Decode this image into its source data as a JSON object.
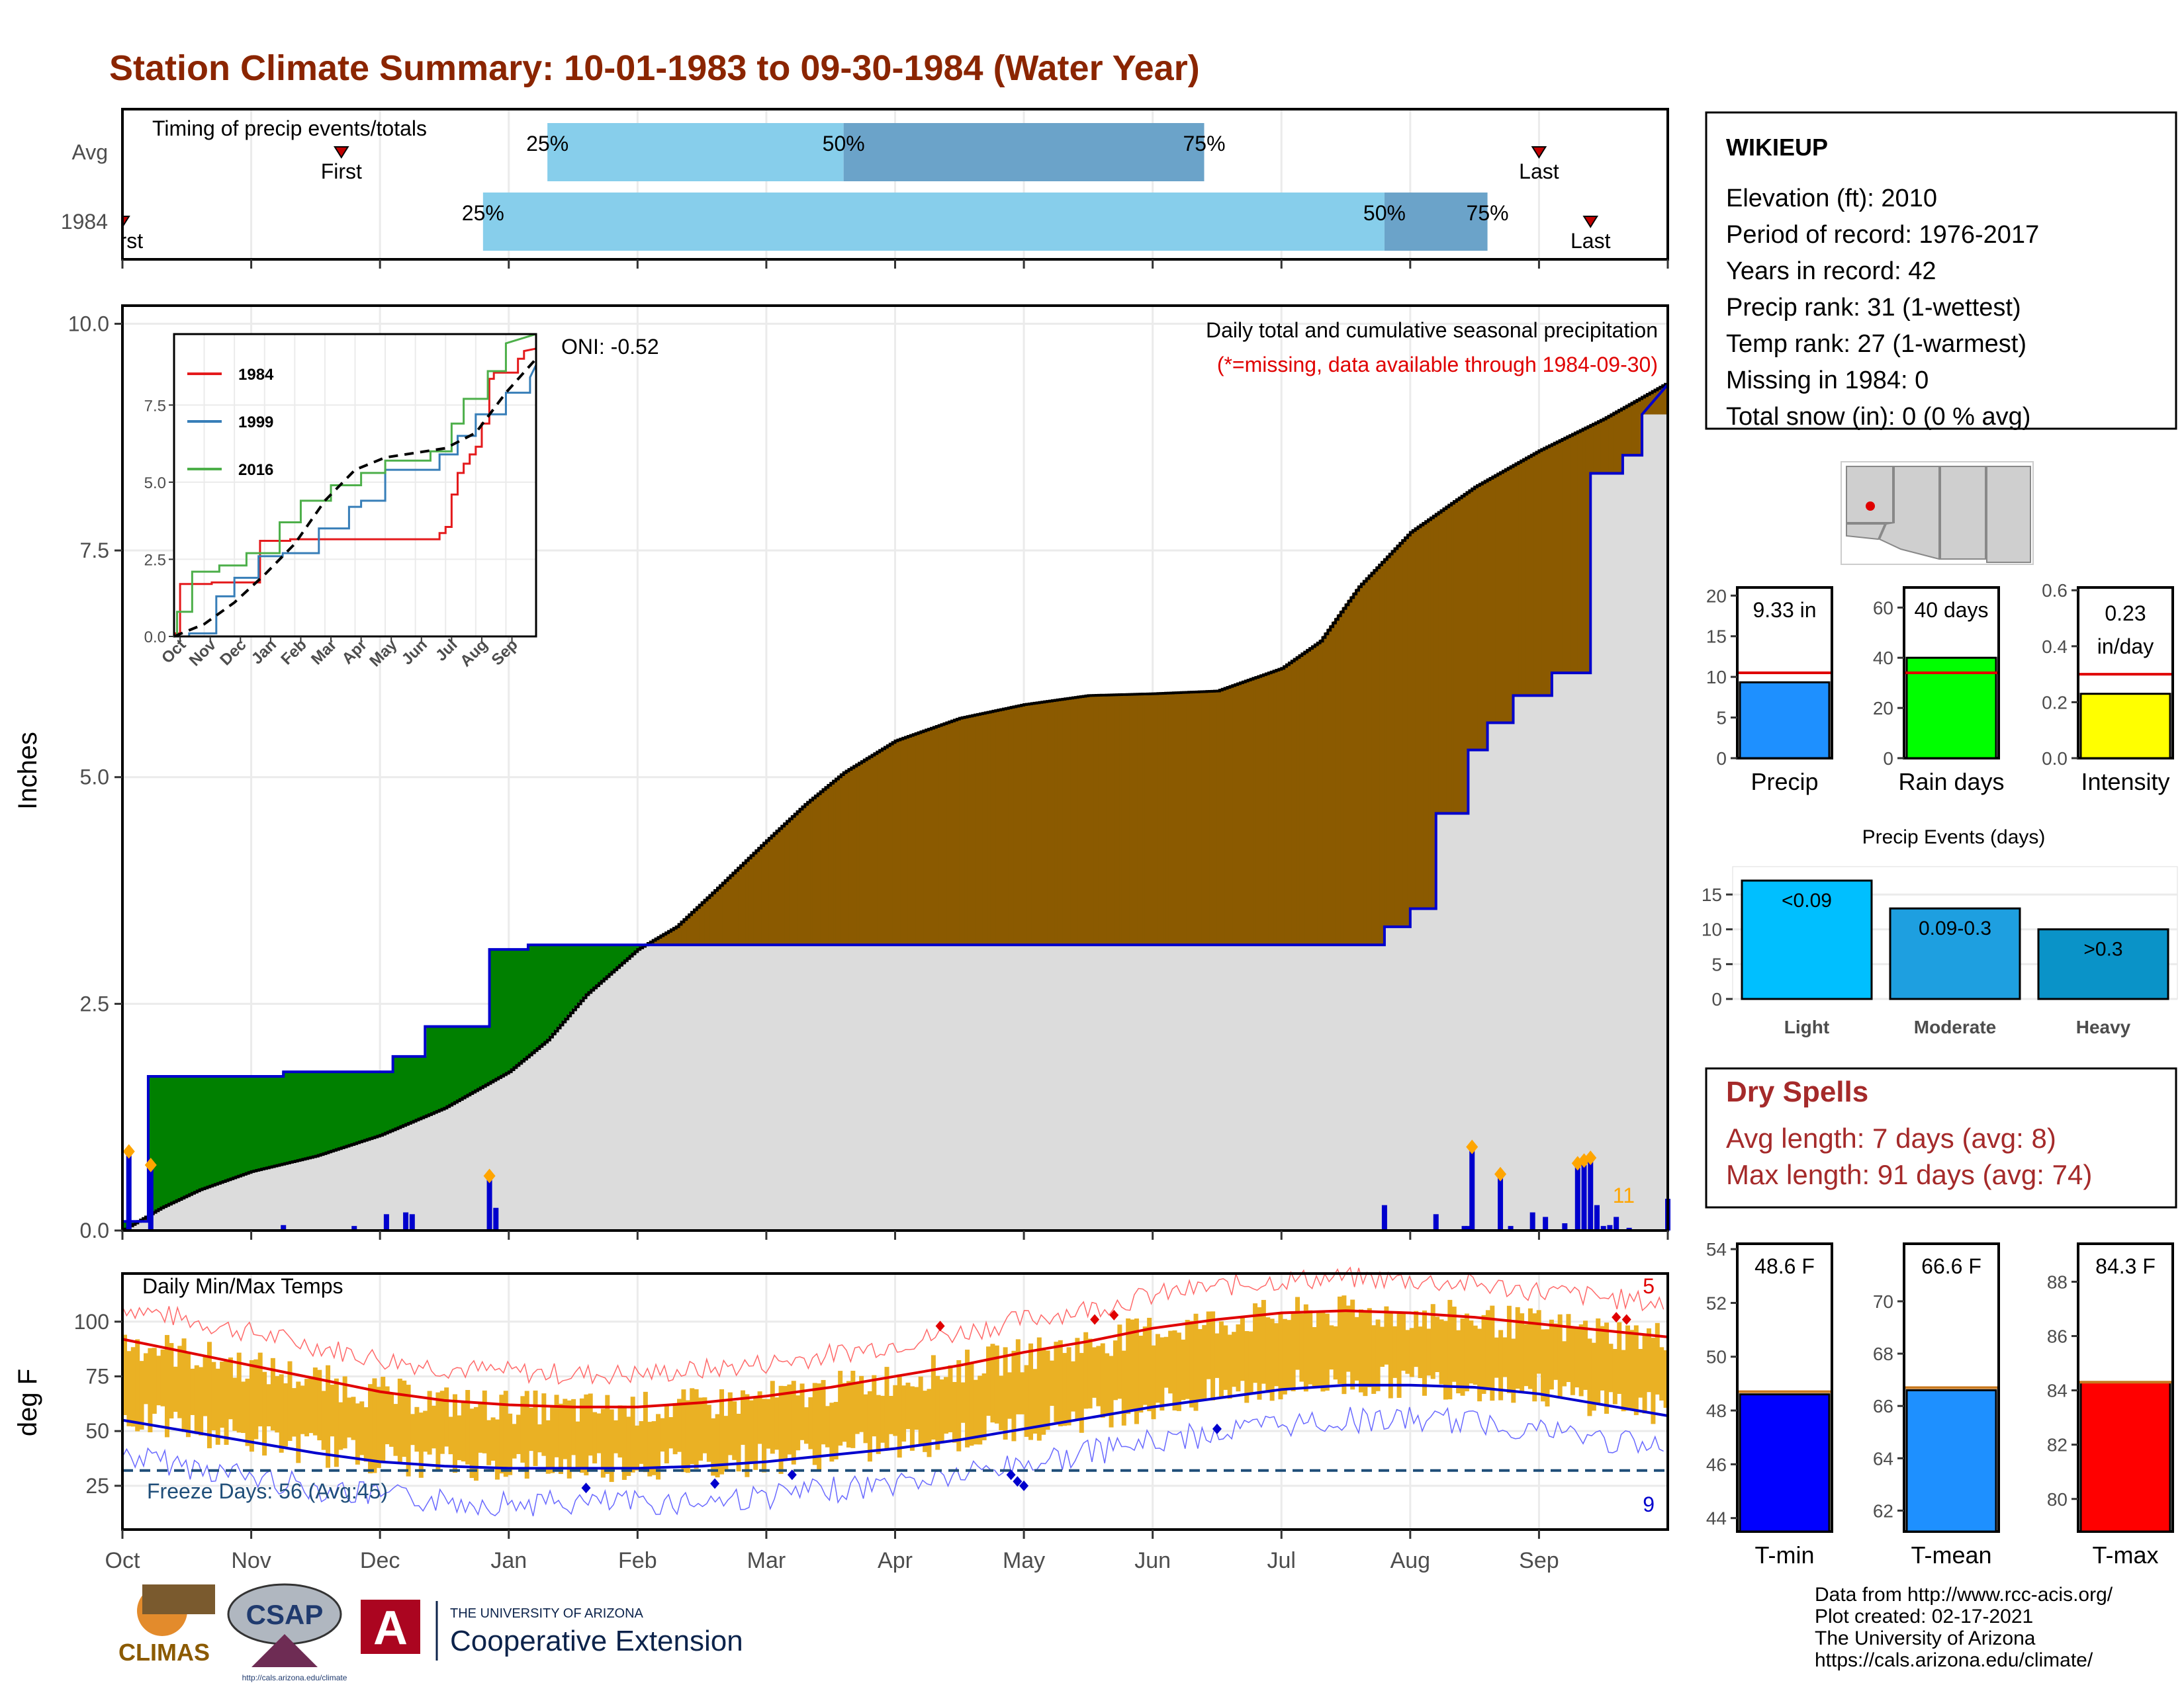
{
  "title": "Station Climate Summary: 10-01-1983 to 09-30-1984 (Water Year)",
  "colors": {
    "title": "#8B2500",
    "dry": "#A52A2A",
    "green": "#008000",
    "brown": "#8B5A00",
    "blue_line": "#0000CD",
    "light_blue": "#87CEEB",
    "mid_blue": "#6BA3C9",
    "grey_fill": "#DCDCDC",
    "orange": "#FFA500",
    "temp_bar": "#EAB124"
  },
  "months": [
    "Oct",
    "Nov",
    "Dec",
    "Jan",
    "Feb",
    "Mar",
    "Apr",
    "May",
    "Jun",
    "Jul",
    "Aug",
    "Sep"
  ],
  "timing": {
    "label": "Timing of precip events/totals",
    "rows": [
      "Avg",
      "1984"
    ],
    "avg": {
      "first": "First",
      "first_x": 1.7,
      "last": "Last",
      "last_x": 11.0,
      "p25": 3.3,
      "p50": 5.6,
      "p75": 8.4,
      "p25_label": "25%",
      "p50_label": "50%",
      "p75_label": "75%"
    },
    "y1984": {
      "first": "First",
      "first_x": 0.0,
      "last": "Last",
      "last_x": 11.4,
      "p25": 2.8,
      "p50": 9.8,
      "p75": 10.6,
      "p25_label": "25%",
      "p50_label": "50%",
      "p75_label": "75%"
    }
  },
  "chart_data": [
    {
      "type": "line",
      "name": "cumulative-precip",
      "title": "Daily total and cumulative seasonal precipitation",
      "subtitle": "(*=missing, data available through 1984-09-30)",
      "ylabel": "Inches",
      "ylim": [
        0,
        10.2
      ],
      "yticks": [
        "0.0",
        "2.5",
        "5.0",
        "7.5",
        "10.0"
      ],
      "oni": "ONI: -0.52",
      "count_label": "11",
      "avg_cumulative": {
        "x": [
          0,
          0.3,
          0.6,
          1,
          1.5,
          2,
          2.5,
          3,
          3.3,
          3.6,
          4,
          4.3,
          4.6,
          5,
          5.3,
          5.6,
          6,
          6.5,
          7,
          7.5,
          8,
          8.5,
          9,
          9.3,
          9.6,
          10,
          10.5,
          11,
          11.5,
          12
        ],
        "y": [
          0,
          0.25,
          0.45,
          0.65,
          0.82,
          1.05,
          1.35,
          1.75,
          2.1,
          2.6,
          3.1,
          3.35,
          3.75,
          4.3,
          4.7,
          5.05,
          5.4,
          5.65,
          5.8,
          5.9,
          5.92,
          5.95,
          6.2,
          6.5,
          7.1,
          7.7,
          8.2,
          8.6,
          8.95,
          9.35
        ]
      },
      "cum_1984": {
        "x": [
          0,
          0.2,
          0.2,
          1.25,
          1.25,
          2.05,
          2.05,
          2.1,
          2.1,
          2.35,
          2.35,
          2.6,
          2.6,
          2.85,
          2.85,
          3.15,
          3.15,
          3.85,
          3.85,
          9.8,
          9.8,
          10.0,
          10.0,
          10.2,
          10.2,
          10.45,
          10.45,
          10.6,
          10.6,
          10.8,
          10.8,
          11.1,
          11.1,
          11.4,
          11.4,
          11.65,
          11.65,
          11.8,
          11.8,
          12
        ],
        "y": [
          0.1,
          0.1,
          1.7,
          1.7,
          1.75,
          1.75,
          1.75,
          1.75,
          1.92,
          1.92,
          2.25,
          2.25,
          2.25,
          2.25,
          3.1,
          3.1,
          3.15,
          3.15,
          3.15,
          3.15,
          3.35,
          3.35,
          3.55,
          3.55,
          4.6,
          4.6,
          5.3,
          5.3,
          5.6,
          5.6,
          5.9,
          5.9,
          6.15,
          6.15,
          8.35,
          8.35,
          8.55,
          8.55,
          9.0,
          9.33
        ]
      },
      "daily": [
        {
          "x": 0.05,
          "y": 0.85
        },
        {
          "x": 0.22,
          "y": 0.7
        },
        {
          "x": 1.25,
          "y": 0.06
        },
        {
          "x": 1.8,
          "y": 0.05
        },
        {
          "x": 2.05,
          "y": 0.18
        },
        {
          "x": 2.2,
          "y": 0.2
        },
        {
          "x": 2.25,
          "y": 0.18
        },
        {
          "x": 2.85,
          "y": 0.58
        },
        {
          "x": 2.9,
          "y": 0.25
        },
        {
          "x": 9.8,
          "y": 0.28
        },
        {
          "x": 10.2,
          "y": 0.18
        },
        {
          "x": 10.42,
          "y": 0.05
        },
        {
          "x": 10.45,
          "y": 0.05
        },
        {
          "x": 10.48,
          "y": 0.9
        },
        {
          "x": 10.7,
          "y": 0.6
        },
        {
          "x": 10.78,
          "y": 0.05
        },
        {
          "x": 10.95,
          "y": 0.2
        },
        {
          "x": 11.05,
          "y": 0.15
        },
        {
          "x": 11.2,
          "y": 0.08
        },
        {
          "x": 11.3,
          "y": 0.72
        },
        {
          "x": 11.35,
          "y": 0.75
        },
        {
          "x": 11.4,
          "y": 0.78
        },
        {
          "x": 11.45,
          "y": 0.28
        },
        {
          "x": 11.5,
          "y": 0.05
        },
        {
          "x": 11.55,
          "y": 0.06
        },
        {
          "x": 11.6,
          "y": 0.15
        },
        {
          "x": 11.7,
          "y": 0.03
        },
        {
          "x": 12.0,
          "y": 0.35
        }
      ]
    },
    {
      "type": "line",
      "name": "inset-years",
      "ylim": [
        0,
        9.8
      ],
      "yticks": [
        "0.0",
        "2.5",
        "5.0",
        "7.5"
      ],
      "series": [
        {
          "name": "1984",
          "color": "#E41A1C",
          "x": [
            0,
            0.2,
            0.2,
            1.25,
            1.25,
            2.85,
            2.85,
            3.85,
            3.85,
            8.8,
            8.8,
            9.0,
            9.0,
            9.2,
            9.2,
            9.4,
            9.4,
            9.6,
            9.6,
            9.8,
            9.8,
            10.0,
            10.0,
            10.2,
            10.2,
            10.45,
            10.45,
            10.6,
            10.6,
            11.4,
            11.4,
            11.6,
            11.6,
            12
          ],
          "y": [
            0.1,
            0.1,
            1.7,
            1.7,
            1.75,
            1.75,
            3.1,
            3.1,
            3.15,
            3.15,
            3.35,
            3.35,
            3.55,
            3.55,
            4.6,
            4.6,
            5.3,
            5.3,
            5.6,
            5.6,
            5.9,
            5.9,
            6.15,
            6.15,
            6.9,
            6.9,
            8.35,
            8.35,
            8.55,
            8.55,
            9.0,
            9.0,
            9.25,
            9.33
          ]
        },
        {
          "name": "1999",
          "color": "#377EB8",
          "x": [
            0,
            0.5,
            0.5,
            1.4,
            1.4,
            2.0,
            2.0,
            2.8,
            2.8,
            3.6,
            3.6,
            4.8,
            4.8,
            5.8,
            5.8,
            6.2,
            6.2,
            7.0,
            7.0,
            8.8,
            8.8,
            9.4,
            9.4,
            10.0,
            10.0,
            11.0,
            11.0,
            11.8,
            11.8,
            12
          ],
          "y": [
            0,
            0,
            0.1,
            0.1,
            1.3,
            1.3,
            1.9,
            1.9,
            2.6,
            2.6,
            2.7,
            2.7,
            3.5,
            3.5,
            4.2,
            4.2,
            4.4,
            4.4,
            5.4,
            5.4,
            5.9,
            5.9,
            6.5,
            6.5,
            7.2,
            7.2,
            7.9,
            7.9,
            8.4,
            8.8
          ]
        },
        {
          "name": "2016",
          "color": "#4DAF4A",
          "x": [
            0,
            0.1,
            0.1,
            0.6,
            0.6,
            1.5,
            1.5,
            2.4,
            2.4,
            3.5,
            3.5,
            4.2,
            4.2,
            5.2,
            5.2,
            6.2,
            6.2,
            7.0,
            7.0,
            8.5,
            8.5,
            9.2,
            9.2,
            9.6,
            9.6,
            10.4,
            10.4,
            11.0,
            11.0,
            12
          ],
          "y": [
            0,
            0,
            0.8,
            0.8,
            2.1,
            2.1,
            2.3,
            2.3,
            2.7,
            2.7,
            3.7,
            3.7,
            4.4,
            4.4,
            4.9,
            4.9,
            5.3,
            5.3,
            5.7,
            5.7,
            6.0,
            6.0,
            6.9,
            6.9,
            7.7,
            7.7,
            8.6,
            8.6,
            9.5,
            9.8
          ]
        },
        {
          "name": "avg",
          "color": "#000000",
          "dashed": true,
          "x": [
            0,
            1,
            2,
            3,
            4,
            5,
            6,
            7,
            8,
            9,
            10,
            11,
            12
          ],
          "y": [
            0,
            0.4,
            1.1,
            2.0,
            3.0,
            4.4,
            5.4,
            5.8,
            5.95,
            6.1,
            6.6,
            7.9,
            9.0
          ]
        }
      ],
      "xticks": [
        "Oct",
        "Nov",
        "Dec",
        "Jan",
        "Feb",
        "Mar",
        "Apr",
        "May",
        "Jun",
        "Jul",
        "Aug",
        "Sep"
      ]
    },
    {
      "type": "bar",
      "name": "daily-temps",
      "title": "Daily Min/Max Temps",
      "ylabel": "deg F",
      "ylim": [
        5,
        122
      ],
      "yticks": [
        "25",
        "50",
        "75",
        "100"
      ],
      "freeze_label": "Freeze Days: 56 (Avg:45)",
      "freeze_line": 32,
      "max_count": "5",
      "min_count": "9",
      "avg_max": {
        "x": [
          0,
          0.5,
          1,
          1.5,
          2,
          2.5,
          3,
          3.5,
          4,
          4.5,
          5,
          5.5,
          6,
          6.5,
          7,
          7.5,
          8,
          8.5,
          9,
          9.5,
          10,
          10.5,
          11,
          11.5,
          12
        ],
        "y": [
          92,
          86,
          80,
          74,
          68,
          64,
          62,
          61,
          61,
          63,
          66,
          70,
          75,
          80,
          86,
          91,
          97,
          101,
          104,
          105,
          104,
          102,
          99,
          96,
          93
        ]
      },
      "avg_min": {
        "x": [
          0,
          0.5,
          1,
          1.5,
          2,
          2.5,
          3,
          3.5,
          4,
          4.5,
          5,
          5.5,
          6,
          6.5,
          7,
          7.5,
          8,
          8.5,
          9,
          9.5,
          10,
          10.5,
          11,
          11.5,
          12
        ],
        "y": [
          55,
          50,
          45,
          40,
          36,
          34,
          33,
          33,
          33,
          34,
          36,
          39,
          42,
          46,
          51,
          56,
          61,
          65,
          69,
          71,
          71,
          70,
          67,
          62,
          57
        ]
      }
    },
    {
      "type": "bar",
      "name": "precip-total",
      "categories": [
        "Precip"
      ],
      "values": [
        9.33
      ],
      "avg": 10.5,
      "ylim": [
        0,
        21
      ],
      "yticks": [
        "0",
        "5",
        "10",
        "15",
        "20"
      ],
      "label": "9.33 in"
    },
    {
      "type": "bar",
      "name": "rain-days",
      "categories": [
        "Rain days"
      ],
      "values": [
        40
      ],
      "avg": 34,
      "ylim": [
        0,
        68
      ],
      "yticks": [
        "0",
        "20",
        "40",
        "60"
      ],
      "label": "40 days"
    },
    {
      "type": "bar",
      "name": "intensity",
      "categories": [
        "Intensity"
      ],
      "values": [
        0.23
      ],
      "avg": 0.3,
      "ylim": [
        0,
        0.61
      ],
      "yticks": [
        "0.0",
        "0.2",
        "0.4",
        "0.6"
      ],
      "label": "0.23",
      "label2": "in/day"
    },
    {
      "type": "bar",
      "name": "precip-events",
      "title": "Precip Events (days)",
      "categories": [
        "Light",
        "Moderate",
        "Heavy"
      ],
      "values": [
        17,
        13,
        10
      ],
      "value_labels": [
        "<0.09",
        "0.09-0.3",
        ">0.3"
      ],
      "ylim": [
        0,
        19
      ],
      "yticks": [
        "0",
        "5",
        "10",
        "15"
      ]
    },
    {
      "type": "bar",
      "name": "t-min",
      "categories": [
        "T-min"
      ],
      "values": [
        48.6
      ],
      "avg": 48.7,
      "ylim": [
        43.5,
        54.2
      ],
      "yticks": [
        "44",
        "46",
        "48",
        "50",
        "52",
        "54"
      ],
      "label": "48.6 F"
    },
    {
      "type": "bar",
      "name": "t-mean",
      "categories": [
        "T-mean"
      ],
      "values": [
        66.6
      ],
      "avg": 66.7,
      "ylim": [
        61.2,
        72.2
      ],
      "yticks": [
        "62",
        "64",
        "66",
        "68",
        "70"
      ],
      "label": "66.6 F"
    },
    {
      "type": "bar",
      "name": "t-max",
      "categories": [
        "T-max"
      ],
      "values": [
        84.3
      ],
      "avg": 84.3,
      "ylim": [
        78.8,
        89.4
      ],
      "yticks": [
        "80",
        "82",
        "84",
        "86",
        "88"
      ],
      "label": "84.3 F"
    }
  ],
  "station": {
    "name": "WIKIEUP",
    "lines": [
      "Elevation (ft): 2010",
      "Period of record: 1976-2017",
      "Years in record: 42",
      "Precip rank: 31 (1-wettest)",
      "Temp rank: 27 (1-warmest)",
      "Missing in 1984: 0",
      "Total snow (in): 0 (0 % avg)"
    ]
  },
  "dry_spells": {
    "title": "Dry Spells",
    "avg": "Avg length: 7 days (avg: 8)",
    "max": "Max length: 91 days (avg: 74)"
  },
  "footer": {
    "lines": [
      "Data from http://www.rcc-acis.org/",
      "Plot created: 02-17-2021",
      "The University of Arizona",
      "https://cals.arizona.edu/climate/"
    ]
  },
  "logos": {
    "climas": "CLIMAS",
    "csap": "CSAP",
    "csap_url": "http://cals.arizona.edu/climate",
    "ua_small": "THE UNIVERSITY OF ARIZONA",
    "ua_big": "Cooperative Extension"
  }
}
